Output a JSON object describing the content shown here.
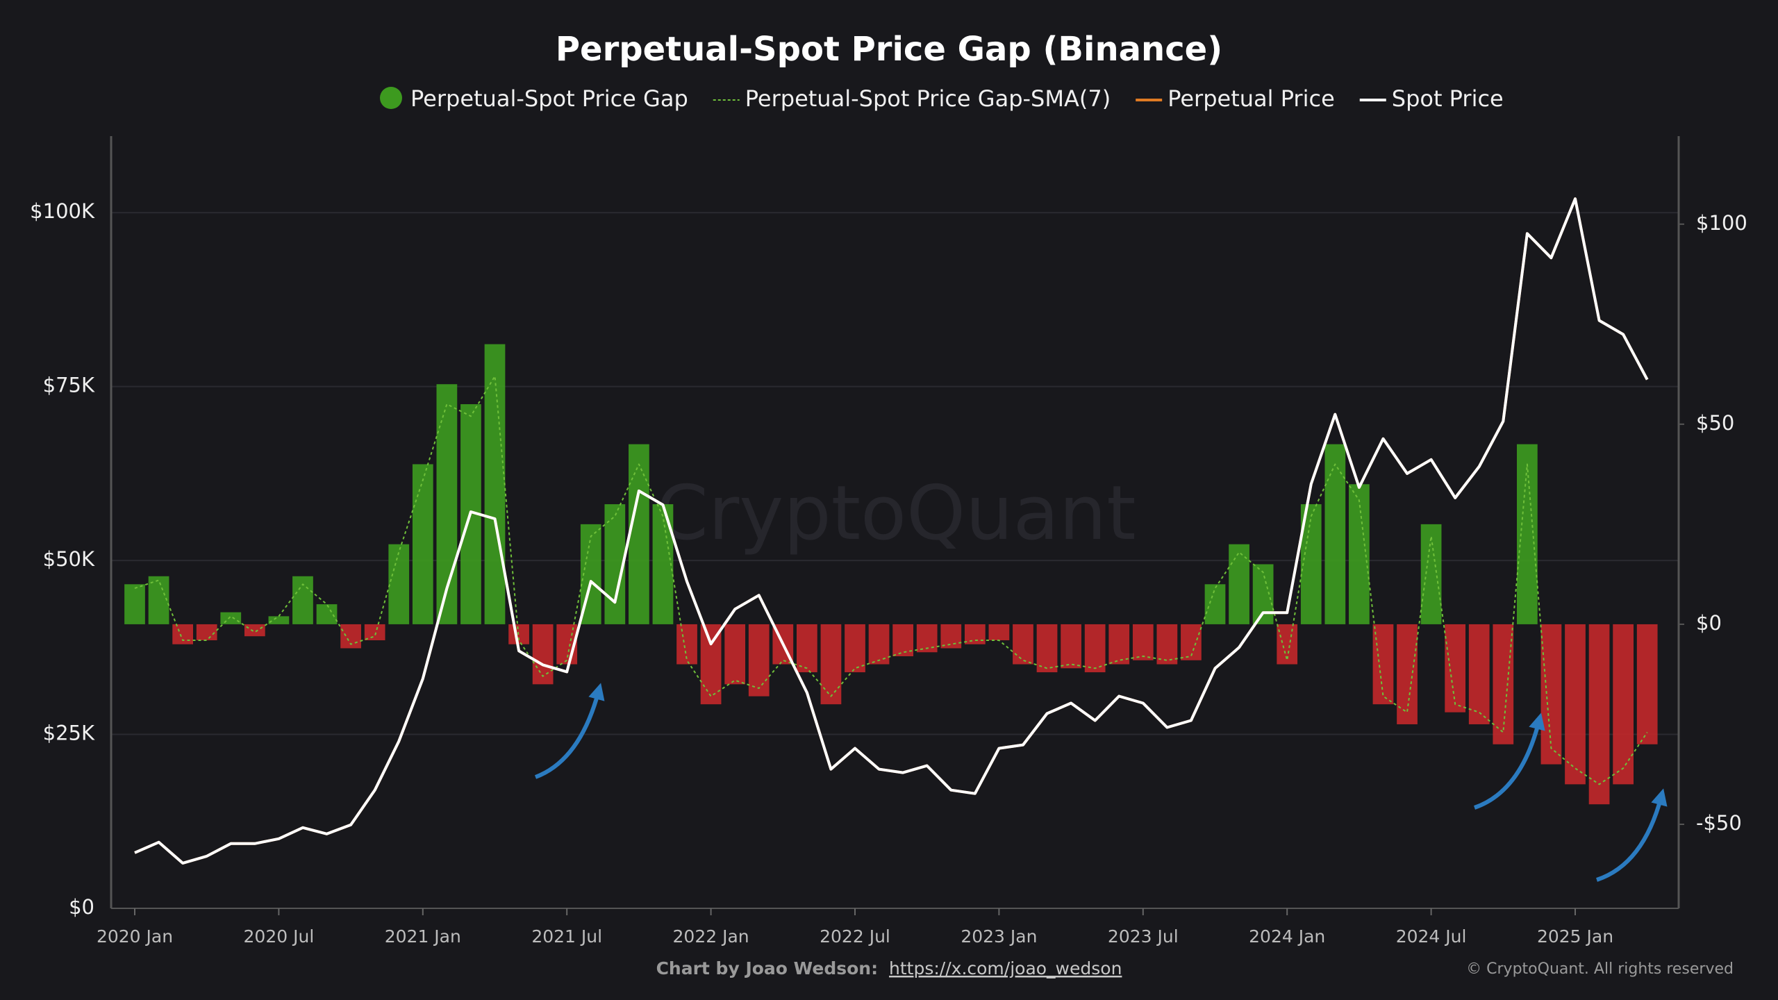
{
  "chart_data": {
    "type": "bar",
    "title": "Perpetual-Spot Price Gap (Binance)",
    "watermark": "CryptoQuant",
    "credit": "Chart by Joao Wedson:",
    "credit_link": "https://x.com/joao_wedson",
    "copyright": "© CryptoQuant. All rights reserved",
    "x": [
      "2020-01",
      "2020-02",
      "2020-03",
      "2020-04",
      "2020-05",
      "2020-06",
      "2020-07",
      "2020-08",
      "2020-09",
      "2020-10",
      "2020-11",
      "2020-12",
      "2021-01",
      "2021-02",
      "2021-03",
      "2021-04",
      "2021-05",
      "2021-06",
      "2021-07",
      "2021-08",
      "2021-09",
      "2021-10",
      "2021-11",
      "2021-12",
      "2022-01",
      "2022-02",
      "2022-03",
      "2022-04",
      "2022-05",
      "2022-06",
      "2022-07",
      "2022-08",
      "2022-09",
      "2022-10",
      "2022-11",
      "2022-12",
      "2023-01",
      "2023-02",
      "2023-03",
      "2023-04",
      "2023-05",
      "2023-06",
      "2023-07",
      "2023-08",
      "2023-09",
      "2023-10",
      "2023-11",
      "2023-12",
      "2024-01",
      "2024-02",
      "2024-03",
      "2024-04",
      "2024-05",
      "2024-06",
      "2024-07",
      "2024-08",
      "2024-09",
      "2024-10",
      "2024-11",
      "2024-12",
      "2025-01",
      "2025-02",
      "2025-03",
      "2025-04"
    ],
    "negative_color": "#c0282a",
    "series": [
      {
        "name": "Perpetual-Spot Price Gap",
        "color": "#3d9a1f",
        "axis": "y2",
        "values": [
          10,
          12,
          -5,
          -4,
          3,
          -3,
          2,
          12,
          5,
          -6,
          -4,
          20,
          40,
          60,
          55,
          70,
          -5,
          -15,
          -10,
          25,
          30,
          45,
          30,
          -10,
          -20,
          -15,
          -18,
          -10,
          -12,
          -20,
          -12,
          -10,
          -8,
          -7,
          -6,
          -5,
          -4,
          -10,
          -12,
          -11,
          -12,
          -10,
          -9,
          -10,
          -9,
          10,
          20,
          15,
          -10,
          30,
          45,
          35,
          -20,
          -25,
          25,
          -22,
          -25,
          -30,
          45,
          -35,
          -40,
          -45,
          -40,
          -30
        ]
      },
      {
        "name": "Perpetual-Spot Price Gap-SMA(7)",
        "color": "#6fbf3a",
        "axis": "y2",
        "values": [
          9,
          11,
          -4,
          -4,
          2,
          -2,
          2,
          10,
          5,
          -5,
          -3,
          18,
          36,
          55,
          52,
          62,
          -4,
          -13,
          -9,
          22,
          27,
          40,
          27,
          -9,
          -18,
          -14,
          -16,
          -9,
          -11,
          -18,
          -11,
          -9,
          -7,
          -6,
          -5,
          -4,
          -4,
          -9,
          -11,
          -10,
          -11,
          -9,
          -8,
          -9,
          -8,
          9,
          18,
          13,
          -9,
          27,
          40,
          31,
          -18,
          -22,
          22,
          -20,
          -22,
          -27,
          40,
          -31,
          -36,
          -40,
          -36,
          -27
        ]
      },
      {
        "name": "Perpetual Price",
        "color": "#e07b24",
        "values": [
          8000,
          9500,
          6500,
          7500,
          9300,
          9300,
          10000,
          11600,
          10700,
          12000,
          17000,
          24000,
          33000,
          46000,
          57000,
          56000,
          37000,
          35000,
          34000,
          47000,
          44000,
          60000,
          58000,
          47000,
          38000,
          43000,
          45000,
          38000,
          31000,
          20000,
          23000,
          20000,
          19500,
          20500,
          17000,
          16500,
          23000,
          23500,
          28000,
          29500,
          27000,
          30500,
          29500,
          26000,
          27000,
          34500,
          37500,
          42500,
          42500,
          61000,
          71000,
          60500,
          67500,
          62500,
          64500,
          59000,
          63500,
          70000,
          97000,
          93500,
          102000,
          84500,
          82500,
          76000
        ]
      },
      {
        "name": "Spot Price",
        "color": "#ffffff",
        "values": [
          8000,
          9500,
          6500,
          7500,
          9300,
          9300,
          10000,
          11600,
          10700,
          12000,
          17000,
          24000,
          33000,
          46000,
          57000,
          56000,
          37000,
          35000,
          34000,
          47000,
          44000,
          60000,
          58000,
          47000,
          38000,
          43000,
          45000,
          38000,
          31000,
          20000,
          23000,
          20000,
          19500,
          20500,
          17000,
          16500,
          23000,
          23500,
          28000,
          29500,
          27000,
          30500,
          29500,
          26000,
          27000,
          34500,
          37500,
          42500,
          42500,
          61000,
          71000,
          60500,
          67500,
          62500,
          64500,
          59000,
          63500,
          70000,
          97000,
          93500,
          102000,
          84500,
          82500,
          76000
        ]
      }
    ],
    "ylim": [
      0,
      111000
    ],
    "yticks": [
      {
        "value": 0,
        "label": "$0"
      },
      {
        "value": 25000,
        "label": "$25K"
      },
      {
        "value": 50000,
        "label": "$50K"
      },
      {
        "value": 75000,
        "label": "$75K"
      },
      {
        "value": 100000,
        "label": "$100K"
      }
    ],
    "y2lim": [
      -71,
      122
    ],
    "y2ticks": [
      {
        "value": -50,
        "label": "-$50"
      },
      {
        "value": 0,
        "label": "$0"
      },
      {
        "value": 50,
        "label": "$50"
      },
      {
        "value": 100,
        "label": "$100"
      }
    ],
    "xticks": [
      {
        "value": "2020-01",
        "label": "2020 Jan"
      },
      {
        "value": "2020-07",
        "label": "2020 Jul"
      },
      {
        "value": "2021-01",
        "label": "2021 Jan"
      },
      {
        "value": "2021-07",
        "label": "2021 Jul"
      },
      {
        "value": "2022-01",
        "label": "2022 Jan"
      },
      {
        "value": "2022-07",
        "label": "2022 Jul"
      },
      {
        "value": "2023-01",
        "label": "2023 Jan"
      },
      {
        "value": "2023-07",
        "label": "2023 Jul"
      },
      {
        "value": "2024-01",
        "label": "2024 Jan"
      },
      {
        "value": "2024-07",
        "label": "2024 Jul"
      },
      {
        "value": "2025-01",
        "label": "2025 Jan"
      }
    ],
    "grid": true
  }
}
